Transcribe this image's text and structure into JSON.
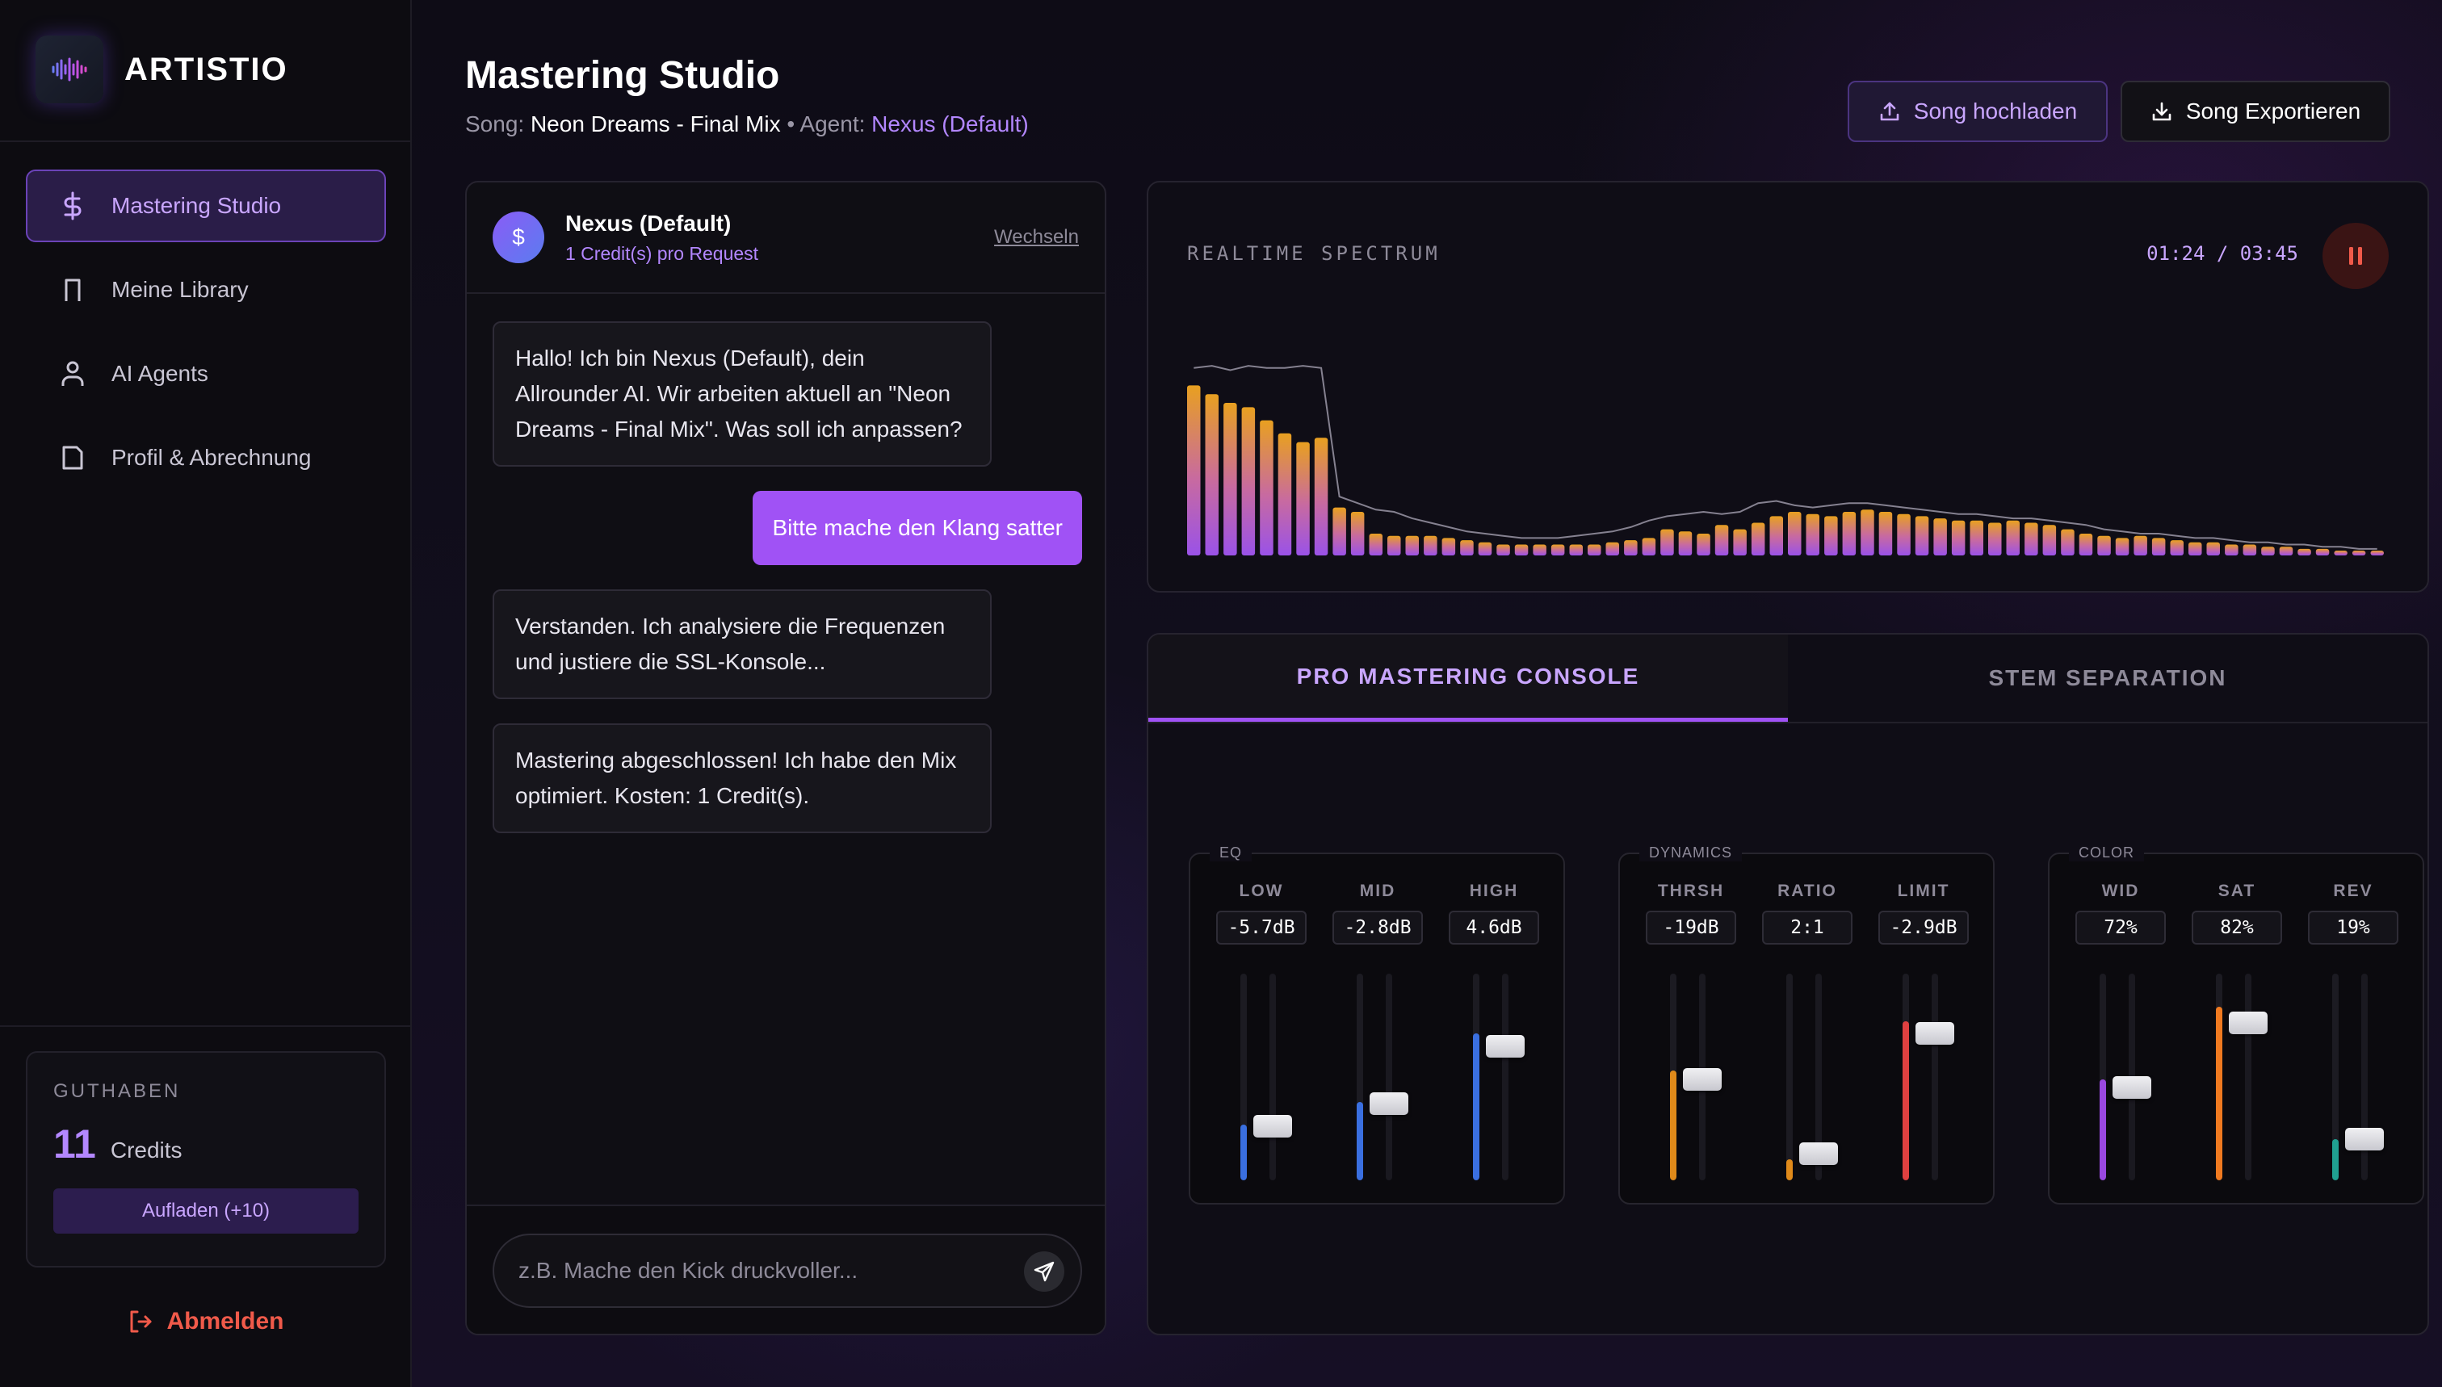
{
  "brand": {
    "name": "ARTISTIO",
    "logo": "waveform-icon"
  },
  "nav": {
    "items": [
      {
        "label": "Mastering Studio",
        "icon": "dollar-icon",
        "active": true
      },
      {
        "label": "Meine Library",
        "icon": "bookmark-icon",
        "active": false
      },
      {
        "label": "AI Agents",
        "icon": "user-icon",
        "active": false
      },
      {
        "label": "Profil & Abrechnung",
        "icon": "file-icon",
        "active": false
      }
    ]
  },
  "credits": {
    "label": "GUTHABEN",
    "amount": "11",
    "unit": "Credits",
    "topup_label": "Aufladen (+10)"
  },
  "logout_label": "Abmelden",
  "header": {
    "title": "Mastering Studio",
    "song_prefix": "Song:",
    "song": "Neon Dreams - Final Mix",
    "separator": "•",
    "agent_prefix": "Agent:",
    "agent": "Nexus (Default)",
    "upload_label": "Song hochladen",
    "export_label": "Song Exportieren"
  },
  "chat": {
    "agent_name": "Nexus (Default)",
    "agent_cost": "1 Credit(s) pro Request",
    "avatar_symbol": "$",
    "switch_label": "Wechseln",
    "messages": [
      {
        "role": "ai",
        "text": "Hallo! Ich bin Nexus (Default), dein Allrounder AI. Wir arbeiten aktuell an \"Neon Dreams - Final Mix\". Was soll ich anpassen?"
      },
      {
        "role": "user",
        "text": "Bitte mache den Klang satter"
      },
      {
        "role": "ai",
        "text": "Verstanden. Ich analysiere die Frequenzen und justiere die SSL-Konsole..."
      },
      {
        "role": "ai",
        "text": "Mastering abgeschlossen! Ich habe den Mix optimiert. Kosten: 1 Credit(s)."
      }
    ],
    "input_placeholder": "z.B. Mache den Kick druckvoller...",
    "input_value": ""
  },
  "spectrum": {
    "label": "REALTIME SPECTRUM",
    "time": "01:24 / 03:45",
    "playing": true,
    "bars": [
      0.78,
      0.74,
      0.7,
      0.68,
      0.62,
      0.56,
      0.52,
      0.54,
      0.22,
      0.2,
      0.1,
      0.09,
      0.09,
      0.09,
      0.08,
      0.07,
      0.06,
      0.05,
      0.05,
      0.05,
      0.05,
      0.05,
      0.05,
      0.06,
      0.07,
      0.08,
      0.12,
      0.11,
      0.1,
      0.14,
      0.12,
      0.15,
      0.18,
      0.2,
      0.19,
      0.18,
      0.2,
      0.21,
      0.2,
      0.19,
      0.18,
      0.17,
      0.16,
      0.16,
      0.15,
      0.16,
      0.15,
      0.14,
      0.12,
      0.1,
      0.09,
      0.08,
      0.09,
      0.08,
      0.07,
      0.06,
      0.06,
      0.05,
      0.05,
      0.04,
      0.04,
      0.03,
      0.03,
      0.02,
      0.02,
      0.02
    ],
    "peaks": [
      0.86,
      0.87,
      0.85,
      0.87,
      0.86,
      0.86,
      0.87,
      0.86,
      0.27,
      0.24,
      0.21,
      0.2,
      0.17,
      0.15,
      0.13,
      0.11,
      0.1,
      0.09,
      0.08,
      0.08,
      0.08,
      0.09,
      0.1,
      0.11,
      0.13,
      0.16,
      0.18,
      0.19,
      0.2,
      0.19,
      0.2,
      0.24,
      0.25,
      0.23,
      0.22,
      0.23,
      0.24,
      0.24,
      0.23,
      0.22,
      0.21,
      0.2,
      0.19,
      0.19,
      0.18,
      0.17,
      0.17,
      0.16,
      0.15,
      0.14,
      0.12,
      0.11,
      0.1,
      0.1,
      0.09,
      0.08,
      0.08,
      0.07,
      0.06,
      0.06,
      0.05,
      0.05,
      0.04,
      0.04,
      0.03,
      0.03
    ]
  },
  "console": {
    "tabs": [
      {
        "label": "PRO MASTERING CONSOLE",
        "active": true
      },
      {
        "label": "STEM SEPARATION",
        "active": false
      }
    ],
    "groups": [
      {
        "title": "EQ",
        "channels": [
          {
            "label": "LOW",
            "value": "-5.7dB",
            "meter": 0.27,
            "fader": 0.26,
            "color": "#3a6fe0"
          },
          {
            "label": "MID",
            "value": "-2.8dB",
            "meter": 0.38,
            "fader": 0.37,
            "color": "#3a6fe0"
          },
          {
            "label": "HIGH",
            "value": "4.6dB",
            "meter": 0.71,
            "fader": 0.65,
            "color": "#3a6fe0"
          }
        ]
      },
      {
        "title": "DYNAMICS",
        "channels": [
          {
            "label": "THRSH",
            "value": "-19dB",
            "meter": 0.53,
            "fader": 0.49,
            "color": "#e08a1a"
          },
          {
            "label": "RATIO",
            "value": "2:1",
            "meter": 0.1,
            "fader": 0.13,
            "color": "#e08a1a"
          },
          {
            "label": "LIMIT",
            "value": "-2.9dB",
            "meter": 0.77,
            "fader": 0.71,
            "color": "#e04040"
          }
        ]
      },
      {
        "title": "COLOR",
        "channels": [
          {
            "label": "WID",
            "value": "72%",
            "meter": 0.49,
            "fader": 0.45,
            "color": "#9a48e0"
          },
          {
            "label": "SAT",
            "value": "82%",
            "meter": 0.84,
            "fader": 0.76,
            "color": "#f07a20"
          },
          {
            "label": "REV",
            "value": "19%",
            "meter": 0.2,
            "fader": 0.2,
            "color": "#20a090"
          }
        ]
      }
    ]
  }
}
